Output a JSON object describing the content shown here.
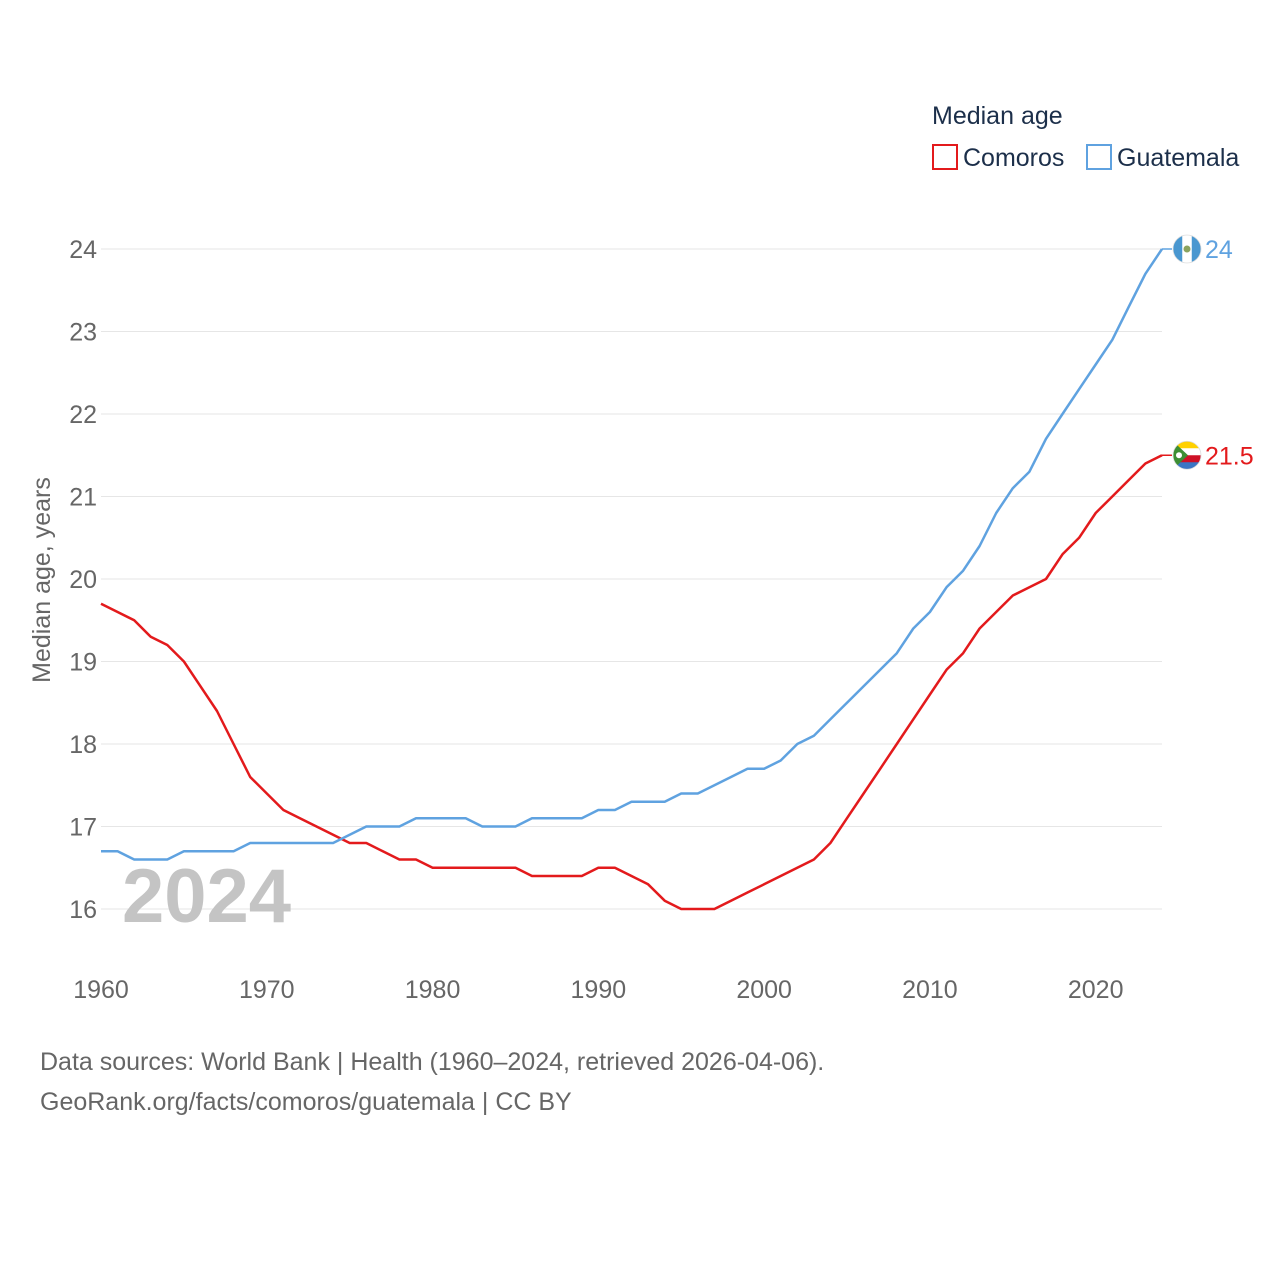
{
  "chart_data": {
    "type": "line",
    "legend": {
      "title": "Median age",
      "position": "top-right"
    },
    "ylabel": "Median age, years",
    "xlabel": "",
    "ylim": [
      15.5,
      24.6
    ],
    "xlim": [
      1960,
      2024
    ],
    "y_ticks": [
      16,
      17,
      18,
      19,
      20,
      21,
      22,
      23,
      24
    ],
    "x_ticks": [
      1960,
      1970,
      1980,
      1990,
      2000,
      2010,
      2020
    ],
    "grid": true,
    "year_watermark": "2024",
    "x": [
      1960,
      1961,
      1962,
      1963,
      1964,
      1965,
      1966,
      1967,
      1968,
      1969,
      1970,
      1971,
      1972,
      1973,
      1974,
      1975,
      1976,
      1977,
      1978,
      1979,
      1980,
      1981,
      1982,
      1983,
      1984,
      1985,
      1986,
      1987,
      1988,
      1989,
      1990,
      1991,
      1992,
      1993,
      1994,
      1995,
      1996,
      1997,
      1998,
      1999,
      2000,
      2001,
      2002,
      2003,
      2004,
      2005,
      2006,
      2007,
      2008,
      2009,
      2010,
      2011,
      2012,
      2013,
      2014,
      2015,
      2016,
      2017,
      2018,
      2019,
      2020,
      2021,
      2022,
      2023,
      2024
    ],
    "series": [
      {
        "name": "Comoros",
        "color": "#e31a1c",
        "end_label": "21.5",
        "flag": "comoros-flag",
        "values": [
          19.7,
          19.6,
          19.5,
          19.3,
          19.2,
          19.0,
          18.7,
          18.4,
          18.0,
          17.6,
          17.4,
          17.2,
          17.1,
          17.0,
          16.9,
          16.8,
          16.8,
          16.7,
          16.6,
          16.6,
          16.5,
          16.5,
          16.5,
          16.5,
          16.5,
          16.5,
          16.4,
          16.4,
          16.4,
          16.4,
          16.5,
          16.5,
          16.4,
          16.3,
          16.1,
          16.0,
          16.0,
          16.0,
          16.1,
          16.2,
          16.3,
          16.4,
          16.5,
          16.6,
          16.8,
          17.1,
          17.4,
          17.7,
          18.0,
          18.3,
          18.6,
          18.9,
          19.1,
          19.4,
          19.6,
          19.8,
          19.9,
          20.0,
          20.3,
          20.5,
          20.8,
          21.0,
          21.2,
          21.4,
          21.5
        ]
      },
      {
        "name": "Guatemala",
        "color": "#5fa2e0",
        "end_label": "24",
        "flag": "guatemala-flag",
        "values": [
          16.7,
          16.7,
          16.6,
          16.6,
          16.6,
          16.7,
          16.7,
          16.7,
          16.7,
          16.8,
          16.8,
          16.8,
          16.8,
          16.8,
          16.8,
          16.9,
          17.0,
          17.0,
          17.0,
          17.1,
          17.1,
          17.1,
          17.1,
          17.0,
          17.0,
          17.0,
          17.1,
          17.1,
          17.1,
          17.1,
          17.2,
          17.2,
          17.3,
          17.3,
          17.3,
          17.4,
          17.4,
          17.5,
          17.6,
          17.7,
          17.7,
          17.8,
          18.0,
          18.1,
          18.3,
          18.5,
          18.7,
          18.9,
          19.1,
          19.4,
          19.6,
          19.9,
          20.1,
          20.4,
          20.8,
          21.1,
          21.3,
          21.7,
          22.0,
          22.3,
          22.6,
          22.9,
          23.3,
          23.7,
          24.0
        ]
      }
    ]
  },
  "footer": {
    "sources": "Data sources: World Bank | Health (1960–2024, retrieved 2026-04-06).",
    "credit": "GeoRank.org/facts/comoros/guatemala | CC BY"
  }
}
